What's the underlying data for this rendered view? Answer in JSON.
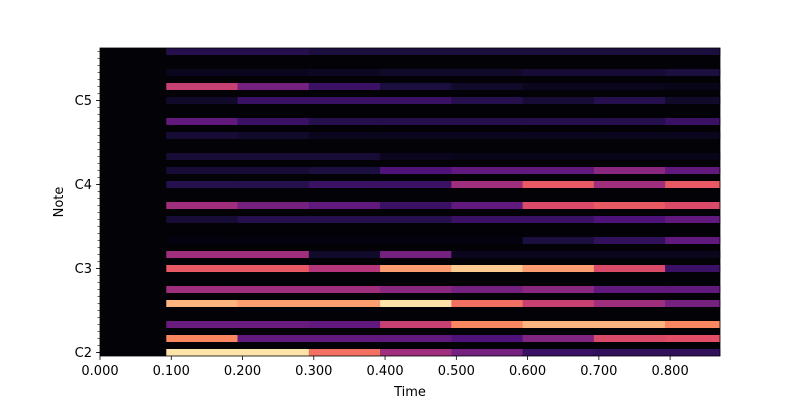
{
  "chart_data": {
    "type": "heatmap",
    "title": "",
    "xlabel": "Time",
    "ylabel": "Note",
    "xlim": [
      0.0,
      0.87
    ],
    "x_ticks": [
      {
        "value": 0.0,
        "label": "0.000"
      },
      {
        "value": 0.1,
        "label": "0.100"
      },
      {
        "value": 0.2,
        "label": "0.200"
      },
      {
        "value": 0.3,
        "label": "0.300"
      },
      {
        "value": 0.4,
        "label": "0.400"
      },
      {
        "value": 0.5,
        "label": "0.500"
      },
      {
        "value": 0.6,
        "label": "0.600"
      },
      {
        "value": 0.7,
        "label": "0.700"
      },
      {
        "value": 0.8,
        "label": "0.800"
      }
    ],
    "y_range_midi": [
      36,
      79
    ],
    "y_ticks": [
      {
        "midi": 36,
        "label": "C2"
      },
      {
        "midi": 48,
        "label": "C3"
      },
      {
        "midi": 60,
        "label": "C4"
      },
      {
        "midi": 72,
        "label": "C5"
      }
    ],
    "colormap": "magma",
    "background_color": "#030206",
    "frame_edges": [
      0.093,
      0.193,
      0.293,
      0.393,
      0.493,
      0.593,
      0.693,
      0.793,
      0.87
    ],
    "rows": [
      {
        "midi": 36,
        "values": [
          0.95,
          0.95,
          0.7,
          0.45,
          0.35,
          0.2,
          0.18,
          0.18
        ]
      },
      {
        "midi": 38,
        "values": [
          0.75,
          0.3,
          0.3,
          0.3,
          0.25,
          0.38,
          0.6,
          0.62
        ]
      },
      {
        "midi": 40,
        "values": [
          0.32,
          0.32,
          0.3,
          0.55,
          0.75,
          0.85,
          0.85,
          0.75
        ]
      },
      {
        "midi": 43,
        "values": [
          0.85,
          0.8,
          0.8,
          0.95,
          0.7,
          0.55,
          0.45,
          0.35
        ]
      },
      {
        "midi": 45,
        "values": [
          0.45,
          0.45,
          0.45,
          0.4,
          0.35,
          0.4,
          0.3,
          0.3
        ]
      },
      {
        "midi": 48,
        "values": [
          0.65,
          0.65,
          0.5,
          0.8,
          0.9,
          0.8,
          0.6,
          0.2
        ]
      },
      {
        "midi": 50,
        "values": [
          0.45,
          0.45,
          0.08,
          0.35,
          0.05,
          0.05,
          0.05,
          0.05
        ]
      },
      {
        "midi": 52,
        "values": [
          0.02,
          0.02,
          0.02,
          0.02,
          0.02,
          0.12,
          0.18,
          0.3
        ]
      },
      {
        "midi": 55,
        "values": [
          0.1,
          0.15,
          0.15,
          0.15,
          0.2,
          0.2,
          0.25,
          0.3
        ]
      },
      {
        "midi": 57,
        "values": [
          0.45,
          0.35,
          0.3,
          0.2,
          0.3,
          0.6,
          0.65,
          0.6
        ]
      },
      {
        "midi": 60,
        "values": [
          0.15,
          0.15,
          0.2,
          0.2,
          0.45,
          0.65,
          0.45,
          0.65
        ]
      },
      {
        "midi": 62,
        "values": [
          0.1,
          0.1,
          0.12,
          0.25,
          0.3,
          0.3,
          0.4,
          0.3
        ]
      },
      {
        "midi": 64,
        "values": [
          0.1,
          0.1,
          0.1,
          0.05,
          0.04,
          0.04,
          0.04,
          0.04
        ]
      },
      {
        "midi": 67,
        "values": [
          0.1,
          0.08,
          0.05,
          0.05,
          0.05,
          0.05,
          0.05,
          0.05
        ]
      },
      {
        "midi": 69,
        "values": [
          0.3,
          0.2,
          0.15,
          0.15,
          0.15,
          0.15,
          0.15,
          0.2
        ]
      },
      {
        "midi": 72,
        "values": [
          0.08,
          0.2,
          0.2,
          0.2,
          0.15,
          0.1,
          0.15,
          0.08
        ]
      },
      {
        "midi": 74,
        "values": [
          0.55,
          0.35,
          0.2,
          0.12,
          0.08,
          0.05,
          0.05,
          0.04
        ]
      },
      {
        "midi": 76,
        "values": [
          0.05,
          0.05,
          0.06,
          0.08,
          0.08,
          0.1,
          0.1,
          0.12
        ]
      },
      {
        "midi": 79,
        "values": [
          0.15,
          0.15,
          0.12,
          0.12,
          0.12,
          0.12,
          0.12,
          0.12
        ]
      }
    ]
  }
}
